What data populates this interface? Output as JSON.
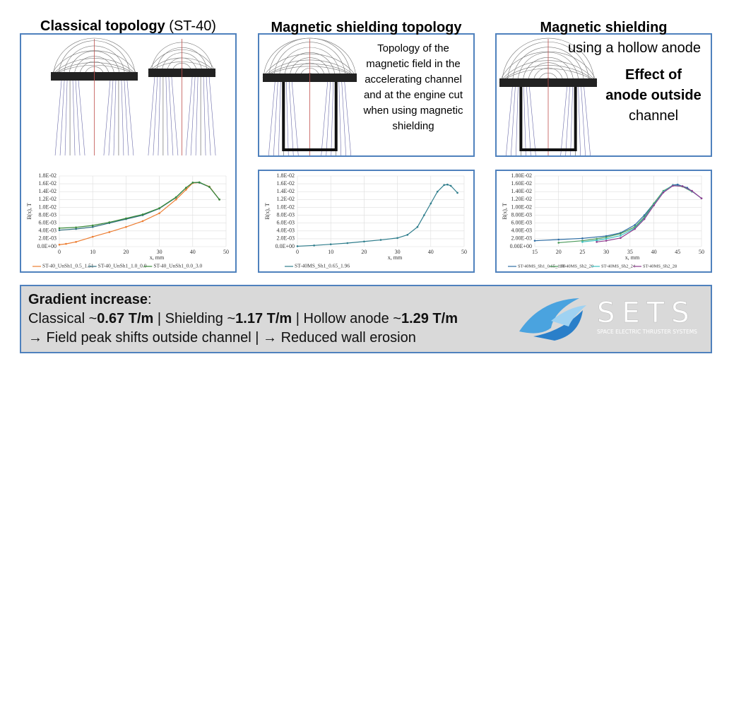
{
  "headings": [
    [
      {
        "text": "Classical topology",
        "bold": true
      },
      {
        "text": " (ST-40)",
        "bold": false
      }
    ],
    [
      {
        "text": "Magnetic shielding topology",
        "bold": true
      }
    ],
    [
      {
        "text": "Magnetic shielding",
        "bold": true
      }
    ]
  ],
  "subheading": "using a hollow anode",
  "caption": "Topology of the magnetic field in the accelerating channel and at the engine cut when using magnetic shielding",
  "note": [
    {
      "text": "Effect of",
      "bold": true
    },
    {
      "text": "anode outside",
      "bold": true
    },
    {
      "text": "channel",
      "bold": false
    }
  ],
  "summary": [
    [
      {
        "text": "Gradient increase",
        "bold": true
      },
      {
        "text": ":",
        "bold": false
      }
    ],
    [
      {
        "text": "Classical ~",
        "bold": false
      },
      {
        "text": "0.67 T/m",
        "bold": true
      },
      {
        "text": " | Shielding ~",
        "bold": false
      },
      {
        "text": "1.17 T/m",
        "bold": true
      },
      {
        "text": " | Hollow anode ~",
        "bold": false
      },
      {
        "text": "1.29 T/m",
        "bold": true
      }
    ],
    [
      {
        "text": "→ Field peak shifts outside channel | → Reduced wall erosion",
        "bold": false
      }
    ]
  ],
  "logo": {
    "name": "SETS",
    "tagline": "SPACE ELECTRIC THRUSTER SYSTEMS"
  },
  "chart_data": [
    {
      "type": "line",
      "xlabel": "x, mm",
      "ylabel": "B(x), T",
      "xlim": [
        0,
        50
      ],
      "xticks": [
        0,
        10,
        20,
        30,
        40,
        50
      ],
      "ylim": [
        0,
        0.018
      ],
      "yticks": [
        {
          "value": 0,
          "label": "0.0E+00"
        },
        {
          "value": 0.002,
          "label": "2.0E-03"
        },
        {
          "value": 0.004,
          "label": "4.0E-03"
        },
        {
          "value": 0.006,
          "label": "6.0E-03"
        },
        {
          "value": 0.008,
          "label": "8.0E-03"
        },
        {
          "value": 0.01,
          "label": "1.0E-02"
        },
        {
          "value": 0.012,
          "label": "1.2E-02"
        },
        {
          "value": 0.014,
          "label": "1.4E-02"
        },
        {
          "value": 0.016,
          "label": "1.6E-02"
        },
        {
          "value": 0.018,
          "label": "1.8E-02"
        }
      ],
      "grid": true,
      "series": [
        {
          "name": "ST-40_UnSh1_0.5_1.51",
          "color": "#ed7d31",
          "x": [
            0,
            2,
            5,
            10,
            15,
            20,
            25,
            30,
            35,
            38,
            40,
            42,
            45,
            48
          ],
          "values": [
            0.0005,
            0.0007,
            0.0012,
            0.0025,
            0.0037,
            0.005,
            0.0065,
            0.0085,
            0.012,
            0.0145,
            0.0162,
            0.0163,
            0.0153,
            0.012
          ]
        },
        {
          "name": "ST-40_UnSh1_1.0_0.0",
          "color": "#2f6f7f",
          "x": [
            0,
            5,
            10,
            15,
            20,
            25,
            30,
            35,
            38,
            40,
            42,
            45,
            48
          ],
          "values": [
            0.0042,
            0.0045,
            0.005,
            0.006,
            0.007,
            0.008,
            0.0097,
            0.0125,
            0.015,
            0.0163,
            0.0163,
            0.0152,
            0.012
          ]
        },
        {
          "name": "ST-40_UnSh1_0.0_3.0",
          "color": "#3a8a3a",
          "x": [
            0,
            5,
            10,
            15,
            20,
            25,
            30,
            35,
            38,
            40,
            42,
            45,
            48
          ],
          "values": [
            0.0047,
            0.0049,
            0.0054,
            0.0062,
            0.0072,
            0.0082,
            0.0098,
            0.0126,
            0.015,
            0.0163,
            0.0164,
            0.0152,
            0.012
          ]
        }
      ]
    },
    {
      "type": "line",
      "xlabel": "x, mm",
      "ylabel": "B(x), T",
      "xlim": [
        0,
        50
      ],
      "xticks": [
        0,
        10,
        20,
        30,
        40,
        50
      ],
      "ylim": [
        0,
        0.018
      ],
      "yticks": [
        {
          "value": 0,
          "label": "0.0E+00"
        },
        {
          "value": 0.002,
          "label": "2.0E-03"
        },
        {
          "value": 0.004,
          "label": "4.0E-03"
        },
        {
          "value": 0.006,
          "label": "6.0E-03"
        },
        {
          "value": 0.008,
          "label": "8.0E-03"
        },
        {
          "value": 0.01,
          "label": "1.0E-02"
        },
        {
          "value": 0.012,
          "label": "1.2E-02"
        },
        {
          "value": 0.014,
          "label": "1.4E-02"
        },
        {
          "value": 0.016,
          "label": "1.6E-02"
        },
        {
          "value": 0.018,
          "label": "1.8E-02"
        }
      ],
      "grid": true,
      "series": [
        {
          "name": "ST-40MS_Sh1_0.65_1.96",
          "color": "#2e7d8c",
          "x": [
            0,
            5,
            10,
            15,
            20,
            25,
            30,
            33,
            36,
            38,
            40,
            42,
            44,
            45,
            46,
            48
          ],
          "values": [
            0.0001,
            0.0003,
            0.0006,
            0.0009,
            0.0013,
            0.0017,
            0.0022,
            0.003,
            0.005,
            0.008,
            0.011,
            0.014,
            0.0157,
            0.0158,
            0.0155,
            0.0137
          ]
        }
      ]
    },
    {
      "type": "line",
      "xlabel": "x, mm",
      "ylabel": "B(x), T",
      "xlim": [
        15,
        50
      ],
      "xticks": [
        15,
        20,
        25,
        30,
        35,
        40,
        45,
        50
      ],
      "ylim": [
        0,
        0.018
      ],
      "yticks": [
        {
          "value": 0,
          "label": "0.00E+00"
        },
        {
          "value": 0.002,
          "label": "2.00E-03"
        },
        {
          "value": 0.004,
          "label": "4.00E-03"
        },
        {
          "value": 0.006,
          "label": "6.00E-03"
        },
        {
          "value": 0.008,
          "label": "8.00E-03"
        },
        {
          "value": 0.01,
          "label": "1.00E-02"
        },
        {
          "value": 0.012,
          "label": "1.20E-02"
        },
        {
          "value": 0.014,
          "label": "1.40E-02"
        },
        {
          "value": 0.016,
          "label": "1.60E-02"
        },
        {
          "value": 0.018,
          "label": "1.80E-02"
        }
      ],
      "grid": true,
      "series": [
        {
          "name": "ST-40MS_Sh1_0.65_1.96",
          "color": "#2e6da4",
          "x": [
            15,
            20,
            25,
            30,
            33,
            36,
            38,
            40,
            42,
            44,
            45,
            47,
            50
          ],
          "values": [
            0.0015,
            0.0018,
            0.0021,
            0.0027,
            0.0035,
            0.0055,
            0.008,
            0.011,
            0.014,
            0.0157,
            0.0158,
            0.015,
            0.0123
          ]
        },
        {
          "name": "ST-40MS_Sh2_20",
          "color": "#4a9a5a",
          "x": [
            20,
            25,
            28,
            30,
            33,
            36,
            38,
            40,
            42,
            44,
            46,
            48
          ],
          "values": [
            0.001,
            0.0015,
            0.002,
            0.0024,
            0.0033,
            0.005,
            0.0075,
            0.011,
            0.0142,
            0.0156,
            0.0153,
            0.014
          ]
        },
        {
          "name": "ST-40MS_Sh2_24",
          "color": "#3cc0c0",
          "x": [
            25,
            28,
            30,
            33,
            36,
            38,
            40,
            42,
            44,
            46,
            48
          ],
          "values": [
            0.0012,
            0.0016,
            0.002,
            0.0028,
            0.0047,
            0.0072,
            0.0107,
            0.014,
            0.0156,
            0.0154,
            0.0141
          ]
        },
        {
          "name": "ST-40MS_Sh2_28",
          "color": "#8e3c8e",
          "x": [
            28,
            30,
            33,
            36,
            38,
            40,
            42,
            44,
            46,
            48,
            50
          ],
          "values": [
            0.0012,
            0.0015,
            0.0022,
            0.0045,
            0.007,
            0.0105,
            0.0138,
            0.0155,
            0.0154,
            0.0142,
            0.0123
          ]
        }
      ]
    }
  ]
}
